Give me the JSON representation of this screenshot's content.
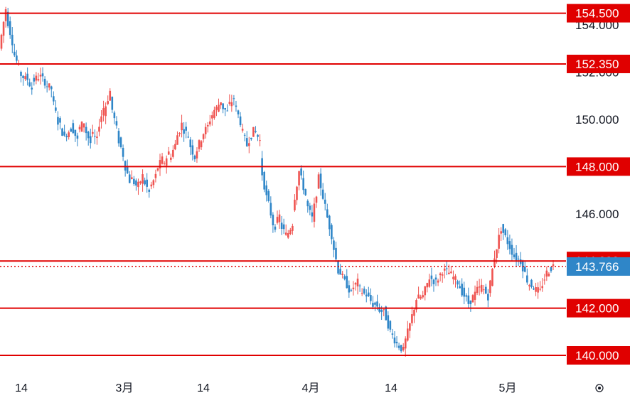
{
  "chart_data": {
    "type": "candlestick",
    "y_axis_ticks": [
      {
        "value": 146,
        "label": "146.000"
      },
      {
        "value": 150,
        "label": "150.000"
      },
      {
        "value": 152,
        "label": "152.000"
      },
      {
        "value": 154,
        "label": "154.000"
      }
    ],
    "x_axis_ticks": [
      {
        "label": "14"
      },
      {
        "label": "3月"
      },
      {
        "label": "14"
      },
      {
        "label": "4月"
      },
      {
        "label": "14"
      },
      {
        "label": "5月"
      }
    ],
    "horizontal_levels": [
      {
        "value": 154.5,
        "label": "154.500"
      },
      {
        "value": 152.35,
        "label": "152.350"
      },
      {
        "value": 148.0,
        "label": "148.000"
      },
      {
        "value": 144.0,
        "label": "144.000"
      },
      {
        "value": 142.0,
        "label": "142.000"
      },
      {
        "value": 140.0,
        "label": "140.000"
      }
    ],
    "current_price": {
      "value": 143.766,
      "label": "143.766"
    },
    "ylim": [
      139.4,
      155.0
    ],
    "colors": {
      "up": "#ef5350",
      "down": "#2f86c8",
      "level_line": "#e00000",
      "price_tag": "#2f86c8",
      "level_tag": "#e00000"
    },
    "price_path": [
      [
        153.0,
        154.7
      ],
      [
        154.5,
        153.3
      ],
      [
        153.0,
        152.2
      ],
      [
        152.0,
        151.7
      ],
      [
        151.9,
        151.3
      ],
      [
        151.6,
        151.8
      ],
      [
        151.9,
        151.6
      ],
      [
        151.5,
        151.3
      ],
      [
        151.0,
        149.9
      ],
      [
        150.0,
        149.2
      ],
      [
        149.3,
        149.6
      ],
      [
        149.8,
        149.1
      ],
      [
        149.5,
        149.9
      ],
      [
        149.7,
        149.0
      ],
      [
        149.4,
        149.1
      ],
      [
        149.5,
        150.5
      ],
      [
        150.3,
        151.2
      ],
      [
        150.8,
        149.6
      ],
      [
        149.4,
        148.5
      ],
      [
        148.3,
        147.4
      ],
      [
        147.6,
        147.2
      ],
      [
        147.0,
        147.6
      ],
      [
        147.5,
        146.9
      ],
      [
        147.0,
        147.6
      ],
      [
        147.8,
        148.3
      ],
      [
        148.0,
        148.6
      ],
      [
        148.3,
        148.9
      ],
      [
        149.1,
        149.8
      ],
      [
        149.7,
        149.3
      ],
      [
        149.1,
        148.4
      ],
      [
        148.5,
        149.2
      ],
      [
        149.3,
        149.7
      ],
      [
        149.8,
        150.4
      ],
      [
        150.3,
        150.8
      ],
      [
        150.6,
        150.3
      ],
      [
        150.5,
        150.9
      ],
      [
        150.7,
        149.9
      ],
      [
        149.7,
        148.9
      ],
      [
        149.0,
        149.5
      ],
      [
        149.6,
        149.1
      ],
      [
        148.2,
        146.7
      ],
      [
        146.8,
        145.6
      ],
      [
        145.3,
        145.9
      ],
      [
        145.6,
        145.1
      ],
      [
        145.0,
        145.6
      ],
      [
        146.2,
        147.8
      ],
      [
        147.8,
        146.8
      ],
      [
        146.5,
        145.8
      ],
      [
        145.7,
        147.5
      ],
      [
        147.6,
        146.3
      ],
      [
        146.2,
        145.1
      ],
      [
        145.0,
        143.6
      ],
      [
        143.7,
        143.1
      ],
      [
        143.2,
        142.6
      ],
      [
        142.8,
        143.1
      ],
      [
        142.9,
        142.6
      ],
      [
        142.7,
        142.3
      ],
      [
        142.2,
        142.1
      ],
      [
        142.0,
        141.8
      ],
      [
        141.9,
        141.0
      ],
      [
        141.0,
        140.5
      ],
      [
        140.5,
        140.2
      ],
      [
        140.3,
        141.3
      ],
      [
        141.3,
        142.4
      ],
      [
        142.4,
        142.5
      ],
      [
        142.5,
        143.3
      ],
      [
        143.3,
        143.1
      ],
      [
        143.1,
        143.6
      ],
      [
        143.6,
        143.5
      ],
      [
        143.5,
        143.2
      ],
      [
        143.3,
        142.7
      ],
      [
        142.7,
        142.2
      ],
      [
        142.2,
        142.6
      ],
      [
        142.7,
        142.9
      ],
      [
        142.9,
        142.5
      ],
      [
        142.5,
        144.2
      ],
      [
        144.2,
        145.4
      ],
      [
        145.4,
        144.8
      ],
      [
        144.8,
        144.2
      ],
      [
        144.2,
        144.0
      ],
      [
        144.0,
        143.2
      ],
      [
        143.1,
        142.9
      ],
      [
        142.8,
        142.7
      ],
      [
        142.8,
        143.5
      ],
      [
        143.5,
        143.8
      ]
    ]
  }
}
